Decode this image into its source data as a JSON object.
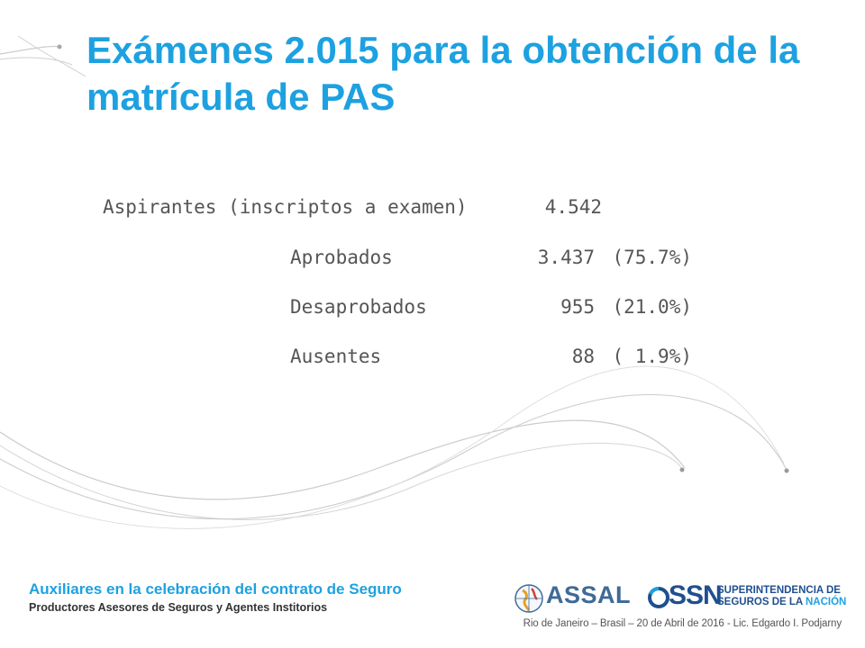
{
  "slide": {
    "title": "Exámenes 2.015 para la obtención de la matrícula de PAS",
    "stats": {
      "total": {
        "label": "Aspirantes (inscriptos a examen)",
        "value": "4.542"
      },
      "rows": [
        {
          "label": "Aprobados",
          "value": "3.437",
          "percent": "(75.7%)"
        },
        {
          "label": "Desaprobados",
          "value": "955",
          "percent": "(21.0%)"
        },
        {
          "label": "Ausentes",
          "value": "88",
          "percent": "( 1.9%)"
        }
      ]
    }
  },
  "footer": {
    "title": "Auxiliares en la celebración del contrato de Seguro",
    "subtitle": "Productores Asesores de Seguros y Agentes Institorios",
    "event_line": "Rio de Janeiro – Brasil – 20 de Abril de 2016 - Lic. Edgardo I. Podjarny",
    "logos": {
      "assal": "ASSAL",
      "ssn": "SSN",
      "ssn_name_line1": "SUPERINTENDENCIA DE",
      "ssn_name_line2a": "SEGUROS DE LA ",
      "ssn_name_line2b": "NACIÓN"
    }
  },
  "colors": {
    "title": "#1da1e0",
    "body_text": "#555555",
    "ssn_blue": "#1f4f8f",
    "decor_lines": "#c8c8c8"
  }
}
